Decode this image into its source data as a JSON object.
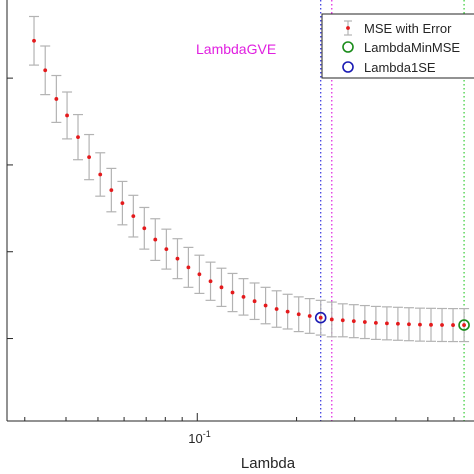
{
  "chart_data": {
    "type": "scatter",
    "title": "",
    "xlabel": "Lambda",
    "ylabel": "",
    "xscale": "log",
    "xlim": [
      0.0265,
      0.69
    ],
    "ylim": [
      0.585,
      1.07
    ],
    "x_tick_labels": [
      {
        "value": 0.1,
        "base": "10",
        "exp": "-1"
      }
    ],
    "y_ticks": [
      0.68,
      0.78,
      0.88,
      0.98
    ],
    "grid": false,
    "legend_position": "top-right",
    "annotation": {
      "text": "LambdaGVE",
      "color": "#e020e0"
    },
    "series": [
      {
        "name": "MSE with Error",
        "color": "#e41a1c",
        "errorbar_color": "#b3b3b3",
        "x": [
          0.032,
          0.0346,
          0.0374,
          0.0403,
          0.0435,
          0.047,
          0.0508,
          0.0549,
          0.0593,
          0.064,
          0.0691,
          0.0746,
          0.0806,
          0.0871,
          0.094,
          0.1015,
          0.1097,
          0.1184,
          0.1279,
          0.1381,
          0.1492,
          0.1611,
          0.174,
          0.1879,
          0.203,
          0.2192,
          0.2367,
          0.2557,
          0.2761,
          0.2982,
          0.3221,
          0.3479,
          0.3757,
          0.4057,
          0.4382,
          0.4732,
          0.5111,
          0.552,
          0.5961,
          0.6438
        ],
        "y": [
          1.023,
          0.989,
          0.956,
          0.937,
          0.912,
          0.889,
          0.869,
          0.851,
          0.836,
          0.821,
          0.807,
          0.794,
          0.783,
          0.772,
          0.762,
          0.754,
          0.746,
          0.739,
          0.733,
          0.728,
          0.723,
          0.718,
          0.714,
          0.711,
          0.708,
          0.706,
          0.704,
          0.702,
          0.701,
          0.7,
          0.699,
          0.698,
          0.6975,
          0.697,
          0.6965,
          0.696,
          0.6958,
          0.6956,
          0.6955,
          0.6955
        ],
        "err": [
          0.028,
          0.028,
          0.027,
          0.027,
          0.026,
          0.026,
          0.025,
          0.025,
          0.025,
          0.024,
          0.024,
          0.024,
          0.023,
          0.023,
          0.023,
          0.022,
          0.022,
          0.022,
          0.022,
          0.021,
          0.021,
          0.021,
          0.021,
          0.02,
          0.02,
          0.02,
          0.02,
          0.02,
          0.019,
          0.019,
          0.019,
          0.019,
          0.019,
          0.019,
          0.019,
          0.019,
          0.019,
          0.019,
          0.019,
          0.019
        ]
      },
      {
        "name": "LambdaMinMSE",
        "color": "#1a8c1a",
        "marker": "circle",
        "x": 0.6438,
        "y": 0.6955,
        "vline_color": "#33cc33"
      },
      {
        "name": "Lambda1SE",
        "color": "#1a1ab3",
        "marker": "circle",
        "x": 0.2367,
        "y": 0.704,
        "vline_color": "#3333dd"
      }
    ],
    "lambda_gve_x": 0.2557,
    "lambda_gve_color": "#e020e0"
  },
  "legend": {
    "items": [
      {
        "label": "MSE with Error"
      },
      {
        "label": "LambdaMinMSE"
      },
      {
        "label": "Lambda1SE"
      }
    ]
  }
}
